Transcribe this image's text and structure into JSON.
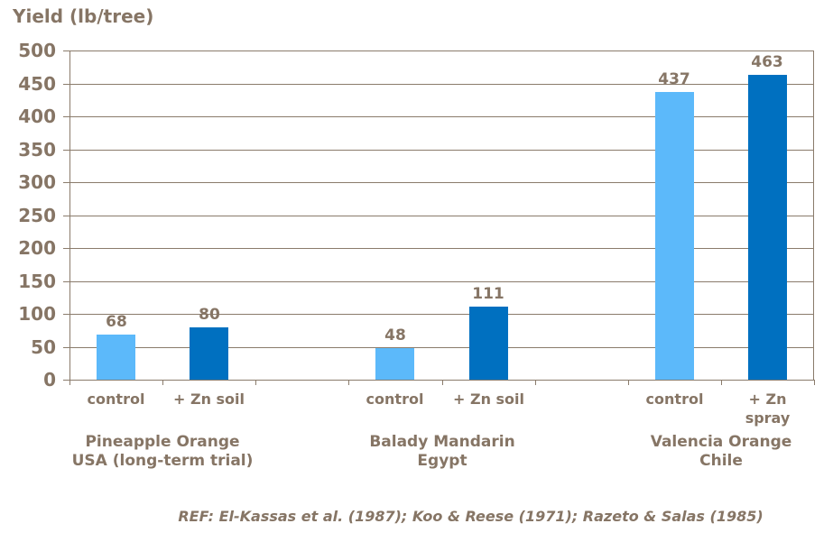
{
  "chart_data": {
    "type": "bar",
    "title": "Yield (lb/tree)",
    "xlabel": "",
    "ylabel": "Yield (lb/tree)",
    "ylim": [
      0,
      500
    ],
    "ytick_step": 50,
    "yticks": [
      0,
      50,
      100,
      150,
      200,
      250,
      300,
      350,
      400,
      450,
      500
    ],
    "grid": true,
    "legend_position": "none",
    "colors": {
      "control_bar": "#5CB9FA",
      "zn_bar": "#0070C0",
      "text": "#867565",
      "gridline": "#8A7B6B",
      "background": "#FFFFFF"
    },
    "groups": [
      {
        "name_lines": [
          "Pineapple Orange",
          "USA (long-term trial)"
        ],
        "bars": [
          {
            "label_lines": [
              "control"
            ],
            "value": 68,
            "series": "control"
          },
          {
            "label_lines": [
              "+ Zn soil"
            ],
            "value": 80,
            "series": "zn"
          }
        ]
      },
      {
        "name_lines": [
          "Balady Mandarin",
          "Egypt"
        ],
        "bars": [
          {
            "label_lines": [
              "control"
            ],
            "value": 48,
            "series": "control"
          },
          {
            "label_lines": [
              "+ Zn soil"
            ],
            "value": 111,
            "series": "zn"
          }
        ]
      },
      {
        "name_lines": [
          "Valencia Orange",
          "Chile"
        ],
        "bars": [
          {
            "label_lines": [
              "control"
            ],
            "value": 437,
            "series": "control"
          },
          {
            "label_lines": [
              "+ Zn",
              "spray"
            ],
            "value": 463,
            "series": "zn"
          }
        ]
      }
    ],
    "reference": "REF: El-Kassas et al. (1987); Koo & Reese (1971); Razeto & Salas (1985)"
  }
}
